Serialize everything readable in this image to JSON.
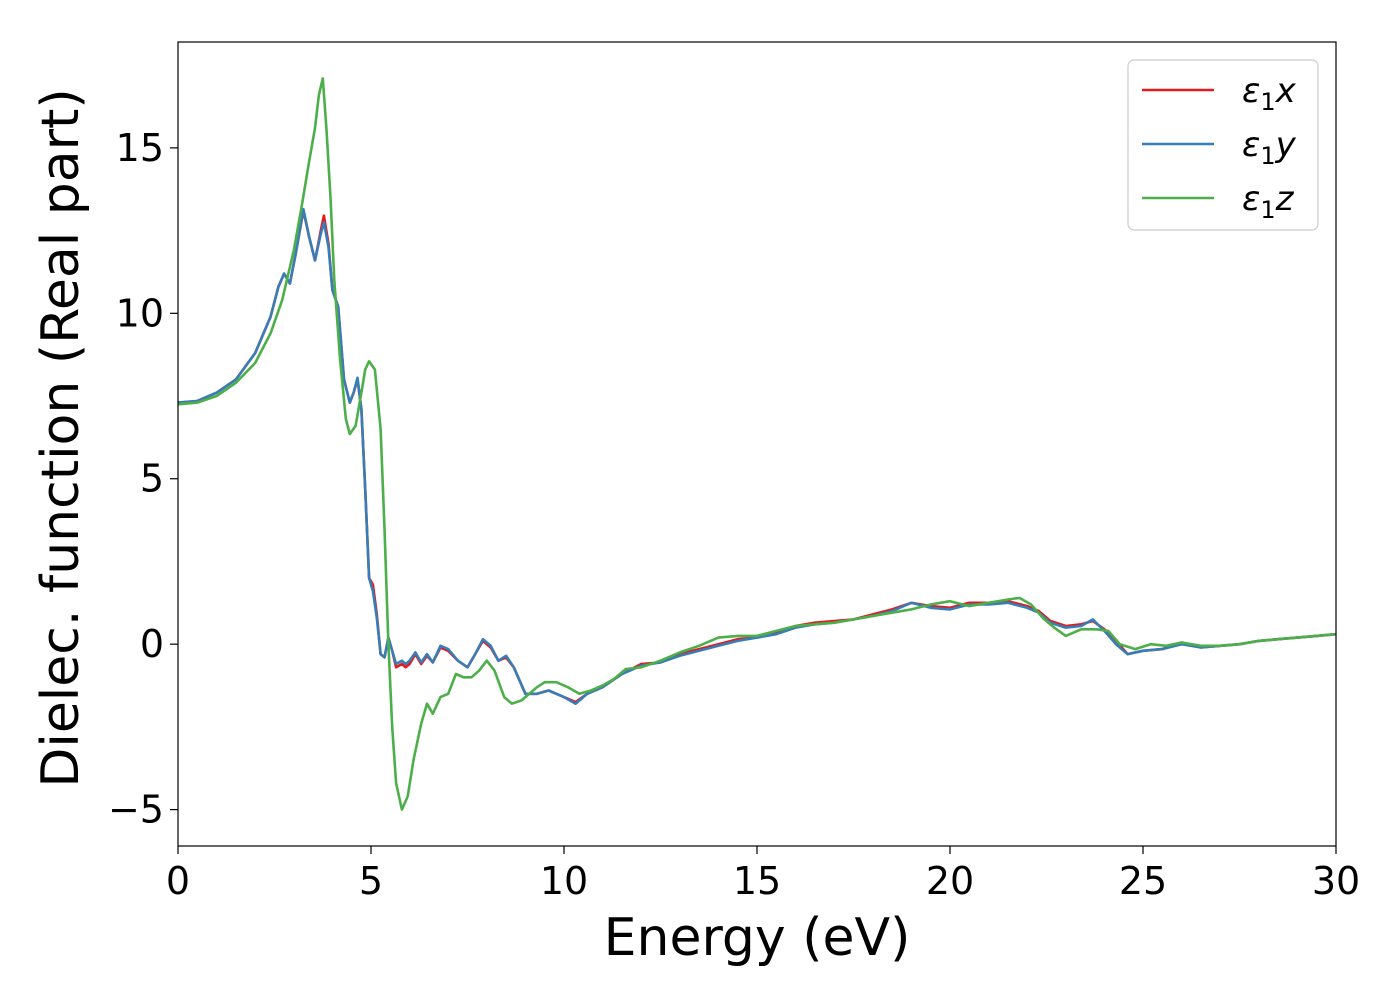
{
  "chart_data": {
    "type": "line",
    "xlabel": "Energy (eV)",
    "ylabel": "Dielec. function (Real part)",
    "xlim": [
      0,
      30
    ],
    "ylim": [
      -6.1,
      18.2
    ],
    "xticks": [
      0,
      5,
      10,
      15,
      20,
      25,
      30
    ],
    "yticks": [
      -5,
      0,
      5,
      10,
      15
    ],
    "grid": false,
    "legend_position": "top-right",
    "series": [
      {
        "name": "ε₁x",
        "legend_main": "ε",
        "legend_sub": "1",
        "legend_tail": "x",
        "color": "#e41a1c",
        "points": [
          [
            0,
            7.3
          ],
          [
            0.5,
            7.35
          ],
          [
            1.0,
            7.6
          ],
          [
            1.5,
            8.0
          ],
          [
            2.0,
            8.8
          ],
          [
            2.4,
            9.9
          ],
          [
            2.6,
            10.8
          ],
          [
            2.75,
            11.2
          ],
          [
            2.9,
            10.9
          ],
          [
            3.05,
            11.8
          ],
          [
            3.25,
            13.1
          ],
          [
            3.4,
            12.3
          ],
          [
            3.55,
            11.6
          ],
          [
            3.7,
            12.5
          ],
          [
            3.78,
            12.95
          ],
          [
            3.9,
            12.1
          ],
          [
            4.0,
            10.7
          ],
          [
            4.15,
            10.2
          ],
          [
            4.3,
            8.0
          ],
          [
            4.45,
            7.3
          ],
          [
            4.55,
            7.6
          ],
          [
            4.65,
            8.0
          ],
          [
            4.75,
            7.1
          ],
          [
            4.85,
            4.7
          ],
          [
            4.95,
            2.0
          ],
          [
            5.05,
            1.8
          ],
          [
            5.15,
            0.9
          ],
          [
            5.25,
            -0.3
          ],
          [
            5.35,
            -0.4
          ],
          [
            5.45,
            0.2
          ],
          [
            5.55,
            -0.2
          ],
          [
            5.65,
            -0.7
          ],
          [
            5.8,
            -0.6
          ],
          [
            5.9,
            -0.7
          ],
          [
            6.0,
            -0.6
          ],
          [
            6.15,
            -0.3
          ],
          [
            6.3,
            -0.6
          ],
          [
            6.45,
            -0.35
          ],
          [
            6.6,
            -0.55
          ],
          [
            6.8,
            -0.1
          ],
          [
            7.0,
            -0.2
          ],
          [
            7.25,
            -0.5
          ],
          [
            7.5,
            -0.7
          ],
          [
            7.7,
            -0.3
          ],
          [
            7.9,
            0.1
          ],
          [
            8.1,
            -0.1
          ],
          [
            8.3,
            -0.5
          ],
          [
            8.5,
            -0.4
          ],
          [
            8.7,
            -0.7
          ],
          [
            9.0,
            -1.5
          ],
          [
            9.3,
            -1.5
          ],
          [
            9.6,
            -1.4
          ],
          [
            10.0,
            -1.6
          ],
          [
            10.3,
            -1.75
          ],
          [
            10.6,
            -1.5
          ],
          [
            11.0,
            -1.3
          ],
          [
            11.5,
            -0.9
          ],
          [
            12.0,
            -0.6
          ],
          [
            12.5,
            -0.55
          ],
          [
            13.0,
            -0.3
          ],
          [
            13.5,
            -0.15
          ],
          [
            14.0,
            0.0
          ],
          [
            14.5,
            0.15
          ],
          [
            15.0,
            0.2
          ],
          [
            15.5,
            0.35
          ],
          [
            16.0,
            0.55
          ],
          [
            16.5,
            0.65
          ],
          [
            17.0,
            0.7
          ],
          [
            17.5,
            0.75
          ],
          [
            18.0,
            0.9
          ],
          [
            18.5,
            1.05
          ],
          [
            19.0,
            1.25
          ],
          [
            19.5,
            1.15
          ],
          [
            20.0,
            1.1
          ],
          [
            20.5,
            1.25
          ],
          [
            21.0,
            1.25
          ],
          [
            21.5,
            1.3
          ],
          [
            22.0,
            1.15
          ],
          [
            22.3,
            1.0
          ],
          [
            22.6,
            0.7
          ],
          [
            23.0,
            0.55
          ],
          [
            23.4,
            0.6
          ],
          [
            23.7,
            0.7
          ],
          [
            24.0,
            0.45
          ],
          [
            24.3,
            0.1
          ],
          [
            24.6,
            -0.3
          ],
          [
            25.0,
            -0.2
          ],
          [
            25.5,
            -0.15
          ],
          [
            26.0,
            0.05
          ],
          [
            26.5,
            -0.1
          ],
          [
            27.0,
            -0.05
          ],
          [
            27.5,
            0.0
          ],
          [
            28.0,
            0.1
          ],
          [
            28.5,
            0.15
          ],
          [
            29.0,
            0.2
          ],
          [
            29.5,
            0.25
          ],
          [
            30.0,
            0.3
          ]
        ]
      },
      {
        "name": "ε₁y",
        "legend_main": "ε",
        "legend_sub": "1",
        "legend_tail": "y",
        "color": "#377eb8",
        "points": [
          [
            0,
            7.3
          ],
          [
            0.5,
            7.35
          ],
          [
            1.0,
            7.6
          ],
          [
            1.5,
            8.0
          ],
          [
            2.0,
            8.8
          ],
          [
            2.4,
            9.9
          ],
          [
            2.6,
            10.8
          ],
          [
            2.75,
            11.2
          ],
          [
            2.9,
            10.9
          ],
          [
            3.05,
            11.8
          ],
          [
            3.25,
            13.15
          ],
          [
            3.4,
            12.3
          ],
          [
            3.55,
            11.6
          ],
          [
            3.7,
            12.4
          ],
          [
            3.78,
            12.75
          ],
          [
            3.9,
            12.0
          ],
          [
            4.0,
            10.7
          ],
          [
            4.15,
            10.2
          ],
          [
            4.3,
            8.0
          ],
          [
            4.45,
            7.3
          ],
          [
            4.55,
            7.6
          ],
          [
            4.65,
            8.05
          ],
          [
            4.75,
            7.1
          ],
          [
            4.85,
            4.7
          ],
          [
            4.95,
            2.0
          ],
          [
            5.05,
            1.6
          ],
          [
            5.15,
            0.8
          ],
          [
            5.25,
            -0.3
          ],
          [
            5.35,
            -0.4
          ],
          [
            5.45,
            0.2
          ],
          [
            5.55,
            -0.2
          ],
          [
            5.65,
            -0.6
          ],
          [
            5.8,
            -0.5
          ],
          [
            5.9,
            -0.6
          ],
          [
            6.0,
            -0.5
          ],
          [
            6.15,
            -0.25
          ],
          [
            6.3,
            -0.55
          ],
          [
            6.45,
            -0.3
          ],
          [
            6.6,
            -0.55
          ],
          [
            6.8,
            -0.05
          ],
          [
            7.0,
            -0.15
          ],
          [
            7.25,
            -0.5
          ],
          [
            7.5,
            -0.7
          ],
          [
            7.7,
            -0.3
          ],
          [
            7.9,
            0.15
          ],
          [
            8.1,
            -0.05
          ],
          [
            8.3,
            -0.5
          ],
          [
            8.5,
            -0.35
          ],
          [
            8.7,
            -0.7
          ],
          [
            9.0,
            -1.5
          ],
          [
            9.3,
            -1.5
          ],
          [
            9.6,
            -1.4
          ],
          [
            10.0,
            -1.6
          ],
          [
            10.3,
            -1.8
          ],
          [
            10.6,
            -1.5
          ],
          [
            11.0,
            -1.3
          ],
          [
            11.5,
            -0.9
          ],
          [
            12.0,
            -0.65
          ],
          [
            12.5,
            -0.55
          ],
          [
            13.0,
            -0.35
          ],
          [
            13.5,
            -0.2
          ],
          [
            14.0,
            -0.05
          ],
          [
            14.5,
            0.1
          ],
          [
            15.0,
            0.2
          ],
          [
            15.5,
            0.3
          ],
          [
            16.0,
            0.5
          ],
          [
            16.5,
            0.6
          ],
          [
            17.0,
            0.65
          ],
          [
            17.5,
            0.75
          ],
          [
            18.0,
            0.85
          ],
          [
            18.5,
            1.0
          ],
          [
            19.0,
            1.25
          ],
          [
            19.5,
            1.1
          ],
          [
            20.0,
            1.05
          ],
          [
            20.5,
            1.2
          ],
          [
            21.0,
            1.2
          ],
          [
            21.5,
            1.25
          ],
          [
            22.0,
            1.1
          ],
          [
            22.3,
            0.95
          ],
          [
            22.6,
            0.65
          ],
          [
            23.0,
            0.5
          ],
          [
            23.4,
            0.55
          ],
          [
            23.7,
            0.75
          ],
          [
            24.0,
            0.4
          ],
          [
            24.3,
            0.0
          ],
          [
            24.6,
            -0.3
          ],
          [
            25.0,
            -0.2
          ],
          [
            25.5,
            -0.15
          ],
          [
            26.0,
            0.0
          ],
          [
            26.5,
            -0.1
          ],
          [
            27.0,
            -0.05
          ],
          [
            27.5,
            0.0
          ],
          [
            28.0,
            0.1
          ],
          [
            28.5,
            0.15
          ],
          [
            29.0,
            0.2
          ],
          [
            29.5,
            0.25
          ],
          [
            30.0,
            0.3
          ]
        ]
      },
      {
        "name": "ε₁z",
        "legend_main": "ε",
        "legend_sub": "1",
        "legend_tail": "z",
        "color": "#4daf4a",
        "points": [
          [
            0,
            7.25
          ],
          [
            0.5,
            7.3
          ],
          [
            1.0,
            7.5
          ],
          [
            1.5,
            7.9
          ],
          [
            2.0,
            8.5
          ],
          [
            2.4,
            9.4
          ],
          [
            2.7,
            10.4
          ],
          [
            3.0,
            11.9
          ],
          [
            3.2,
            13.2
          ],
          [
            3.4,
            14.6
          ],
          [
            3.55,
            15.6
          ],
          [
            3.65,
            16.6
          ],
          [
            3.75,
            17.1
          ],
          [
            3.85,
            15.5
          ],
          [
            3.95,
            13.5
          ],
          [
            4.05,
            11.0
          ],
          [
            4.2,
            8.6
          ],
          [
            4.35,
            6.8
          ],
          [
            4.45,
            6.35
          ],
          [
            4.6,
            6.6
          ],
          [
            4.75,
            7.6
          ],
          [
            4.85,
            8.3
          ],
          [
            4.95,
            8.55
          ],
          [
            5.1,
            8.3
          ],
          [
            5.25,
            6.5
          ],
          [
            5.35,
            3.5
          ],
          [
            5.45,
            0.0
          ],
          [
            5.55,
            -2.5
          ],
          [
            5.65,
            -4.2
          ],
          [
            5.8,
            -5.0
          ],
          [
            5.95,
            -4.6
          ],
          [
            6.1,
            -3.5
          ],
          [
            6.3,
            -2.4
          ],
          [
            6.45,
            -1.8
          ],
          [
            6.6,
            -2.1
          ],
          [
            6.8,
            -1.6
          ],
          [
            7.0,
            -1.5
          ],
          [
            7.2,
            -0.9
          ],
          [
            7.4,
            -1.0
          ],
          [
            7.6,
            -1.0
          ],
          [
            7.8,
            -0.8
          ],
          [
            8.0,
            -0.5
          ],
          [
            8.2,
            -0.8
          ],
          [
            8.45,
            -1.6
          ],
          [
            8.65,
            -1.8
          ],
          [
            8.9,
            -1.7
          ],
          [
            9.1,
            -1.5
          ],
          [
            9.3,
            -1.3
          ],
          [
            9.5,
            -1.15
          ],
          [
            9.8,
            -1.15
          ],
          [
            10.1,
            -1.3
          ],
          [
            10.4,
            -1.5
          ],
          [
            10.7,
            -1.4
          ],
          [
            11.0,
            -1.25
          ],
          [
            11.3,
            -1.05
          ],
          [
            11.6,
            -0.75
          ],
          [
            12.0,
            -0.7
          ],
          [
            12.5,
            -0.5
          ],
          [
            13.0,
            -0.25
          ],
          [
            13.5,
            -0.05
          ],
          [
            14.0,
            0.2
          ],
          [
            14.5,
            0.25
          ],
          [
            15.0,
            0.25
          ],
          [
            15.5,
            0.4
          ],
          [
            16.0,
            0.55
          ],
          [
            16.5,
            0.6
          ],
          [
            17.0,
            0.65
          ],
          [
            17.5,
            0.75
          ],
          [
            18.0,
            0.85
          ],
          [
            18.5,
            0.95
          ],
          [
            19.0,
            1.05
          ],
          [
            19.5,
            1.2
          ],
          [
            20.0,
            1.3
          ],
          [
            20.5,
            1.15
          ],
          [
            21.0,
            1.25
          ],
          [
            21.5,
            1.35
          ],
          [
            21.8,
            1.4
          ],
          [
            22.1,
            1.2
          ],
          [
            22.4,
            0.8
          ],
          [
            22.7,
            0.5
          ],
          [
            23.0,
            0.25
          ],
          [
            23.4,
            0.45
          ],
          [
            23.8,
            0.45
          ],
          [
            24.1,
            0.4
          ],
          [
            24.4,
            0.0
          ],
          [
            24.8,
            -0.15
          ],
          [
            25.2,
            0.0
          ],
          [
            25.6,
            -0.05
          ],
          [
            26.0,
            0.05
          ],
          [
            26.5,
            -0.05
          ],
          [
            27.0,
            -0.05
          ],
          [
            27.5,
            0.0
          ],
          [
            28.0,
            0.1
          ],
          [
            28.5,
            0.15
          ],
          [
            29.0,
            0.2
          ],
          [
            29.5,
            0.25
          ],
          [
            30.0,
            0.3
          ]
        ]
      }
    ]
  }
}
